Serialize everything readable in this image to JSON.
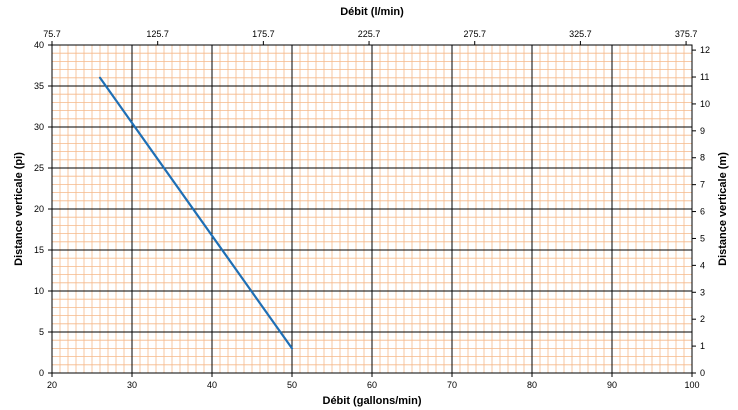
{
  "chart_data": {
    "type": "line",
    "x_bottom": {
      "label": "Débit (gallons/min)",
      "range": [
        20,
        100
      ],
      "ticks": [
        20,
        30,
        40,
        50,
        60,
        70,
        80,
        90,
        100
      ]
    },
    "x_top": {
      "label": "Débit (l/min)",
      "range": [
        75.7,
        378.5
      ],
      "ticks": [
        "75.7",
        "125.7",
        "175.7",
        "225.7",
        "275.7",
        "325.7",
        "375.7"
      ]
    },
    "y_left": {
      "label": "Distance verticale (pi)",
      "range": [
        0,
        40
      ],
      "ticks": [
        0,
        5,
        10,
        15,
        20,
        25,
        30,
        35,
        40
      ]
    },
    "y_right": {
      "label": "Distance verticale (m)",
      "range": [
        0,
        12.19
      ],
      "ticks": [
        0,
        1,
        2,
        3,
        4,
        5,
        6,
        7,
        8,
        9,
        10,
        11,
        12
      ]
    },
    "series": [
      {
        "color": "#1f6fb5",
        "points": [
          {
            "x": 26,
            "y": 36
          },
          {
            "x": 50,
            "y": 3
          }
        ]
      }
    ],
    "grid": {
      "major_color": "#000000",
      "minor_color": "#f5b98a",
      "minor_x_step": 1,
      "minor_y_step": 1
    }
  }
}
